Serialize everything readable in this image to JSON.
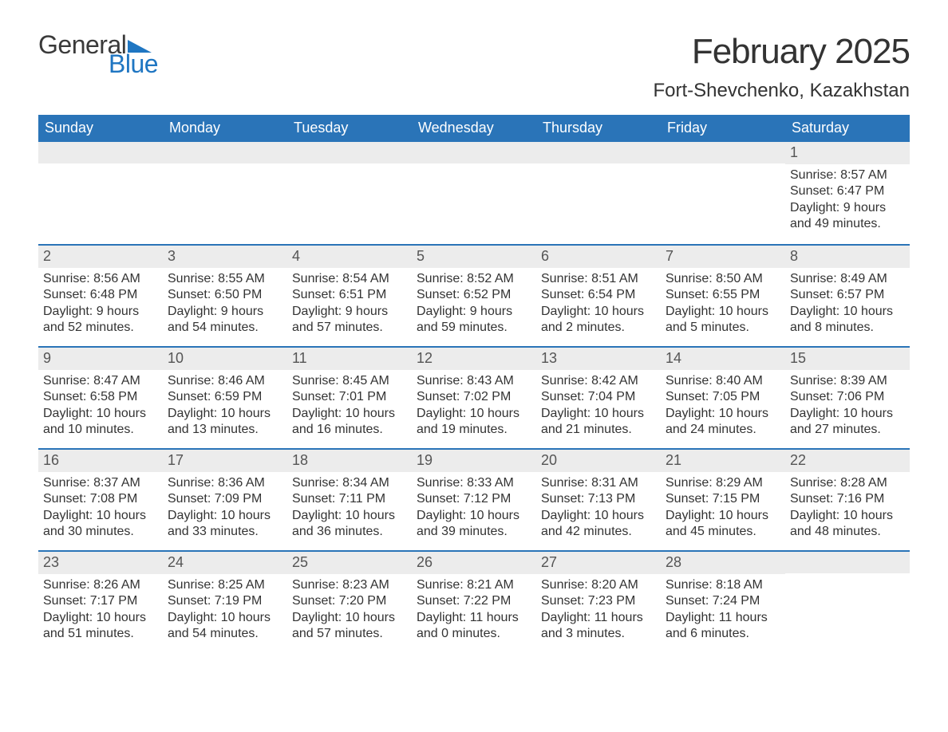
{
  "brand": {
    "word1": "General",
    "word2": "Blue",
    "flag_color": "#1f76c2"
  },
  "title": "February 2025",
  "location": "Fort-Shevchenko, Kazakhstan",
  "colors": {
    "header_bg": "#2a74b8",
    "header_text": "#ffffff",
    "strip_bg": "#ececec",
    "rule": "#2a74b8",
    "text": "#333333",
    "background": "#ffffff"
  },
  "typography": {
    "month_title_pt": 44,
    "location_pt": 24,
    "dow_pt": 18,
    "daynum_pt": 18,
    "body_pt": 16
  },
  "days_of_week": [
    "Sunday",
    "Monday",
    "Tuesday",
    "Wednesday",
    "Thursday",
    "Friday",
    "Saturday"
  ],
  "labels": {
    "sunrise": "Sunrise:",
    "sunset": "Sunset:",
    "daylight": "Daylight:"
  },
  "weeks": [
    [
      null,
      null,
      null,
      null,
      null,
      null,
      {
        "n": "1",
        "sunrise": "8:57 AM",
        "sunset": "6:47 PM",
        "daylight": "9 hours and 49 minutes."
      }
    ],
    [
      {
        "n": "2",
        "sunrise": "8:56 AM",
        "sunset": "6:48 PM",
        "daylight": "9 hours and 52 minutes."
      },
      {
        "n": "3",
        "sunrise": "8:55 AM",
        "sunset": "6:50 PM",
        "daylight": "9 hours and 54 minutes."
      },
      {
        "n": "4",
        "sunrise": "8:54 AM",
        "sunset": "6:51 PM",
        "daylight": "9 hours and 57 minutes."
      },
      {
        "n": "5",
        "sunrise": "8:52 AM",
        "sunset": "6:52 PM",
        "daylight": "9 hours and 59 minutes."
      },
      {
        "n": "6",
        "sunrise": "8:51 AM",
        "sunset": "6:54 PM",
        "daylight": "10 hours and 2 minutes."
      },
      {
        "n": "7",
        "sunrise": "8:50 AM",
        "sunset": "6:55 PM",
        "daylight": "10 hours and 5 minutes."
      },
      {
        "n": "8",
        "sunrise": "8:49 AM",
        "sunset": "6:57 PM",
        "daylight": "10 hours and 8 minutes."
      }
    ],
    [
      {
        "n": "9",
        "sunrise": "8:47 AM",
        "sunset": "6:58 PM",
        "daylight": "10 hours and 10 minutes."
      },
      {
        "n": "10",
        "sunrise": "8:46 AM",
        "sunset": "6:59 PM",
        "daylight": "10 hours and 13 minutes."
      },
      {
        "n": "11",
        "sunrise": "8:45 AM",
        "sunset": "7:01 PM",
        "daylight": "10 hours and 16 minutes."
      },
      {
        "n": "12",
        "sunrise": "8:43 AM",
        "sunset": "7:02 PM",
        "daylight": "10 hours and 19 minutes."
      },
      {
        "n": "13",
        "sunrise": "8:42 AM",
        "sunset": "7:04 PM",
        "daylight": "10 hours and 21 minutes."
      },
      {
        "n": "14",
        "sunrise": "8:40 AM",
        "sunset": "7:05 PM",
        "daylight": "10 hours and 24 minutes."
      },
      {
        "n": "15",
        "sunrise": "8:39 AM",
        "sunset": "7:06 PM",
        "daylight": "10 hours and 27 minutes."
      }
    ],
    [
      {
        "n": "16",
        "sunrise": "8:37 AM",
        "sunset": "7:08 PM",
        "daylight": "10 hours and 30 minutes."
      },
      {
        "n": "17",
        "sunrise": "8:36 AM",
        "sunset": "7:09 PM",
        "daylight": "10 hours and 33 minutes."
      },
      {
        "n": "18",
        "sunrise": "8:34 AM",
        "sunset": "7:11 PM",
        "daylight": "10 hours and 36 minutes."
      },
      {
        "n": "19",
        "sunrise": "8:33 AM",
        "sunset": "7:12 PM",
        "daylight": "10 hours and 39 minutes."
      },
      {
        "n": "20",
        "sunrise": "8:31 AM",
        "sunset": "7:13 PM",
        "daylight": "10 hours and 42 minutes."
      },
      {
        "n": "21",
        "sunrise": "8:29 AM",
        "sunset": "7:15 PM",
        "daylight": "10 hours and 45 minutes."
      },
      {
        "n": "22",
        "sunrise": "8:28 AM",
        "sunset": "7:16 PM",
        "daylight": "10 hours and 48 minutes."
      }
    ],
    [
      {
        "n": "23",
        "sunrise": "8:26 AM",
        "sunset": "7:17 PM",
        "daylight": "10 hours and 51 minutes."
      },
      {
        "n": "24",
        "sunrise": "8:25 AM",
        "sunset": "7:19 PM",
        "daylight": "10 hours and 54 minutes."
      },
      {
        "n": "25",
        "sunrise": "8:23 AM",
        "sunset": "7:20 PM",
        "daylight": "10 hours and 57 minutes."
      },
      {
        "n": "26",
        "sunrise": "8:21 AM",
        "sunset": "7:22 PM",
        "daylight": "11 hours and 0 minutes."
      },
      {
        "n": "27",
        "sunrise": "8:20 AM",
        "sunset": "7:23 PM",
        "daylight": "11 hours and 3 minutes."
      },
      {
        "n": "28",
        "sunrise": "8:18 AM",
        "sunset": "7:24 PM",
        "daylight": "11 hours and 6 minutes."
      },
      null
    ]
  ]
}
